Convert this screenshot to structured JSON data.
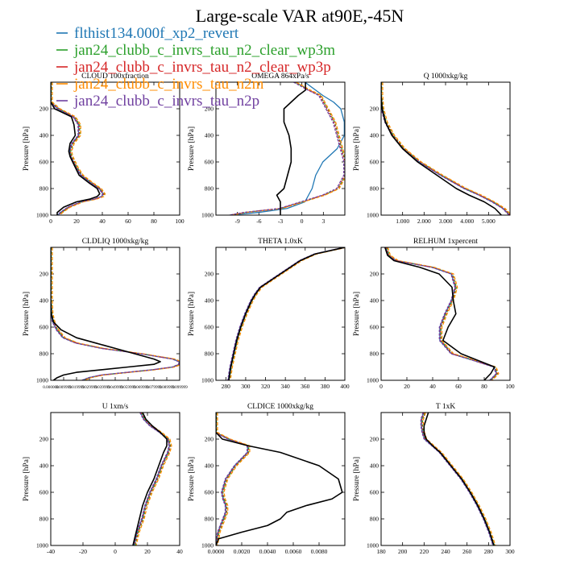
{
  "figure": {
    "title": "Large-scale VAR at90E,-45N"
  },
  "legend": [
    {
      "name": "flthist134.000f_xp2_revert",
      "color": "#1f77b4"
    },
    {
      "name": "jan24_clubb_c_invrs_tau_n2_clear_wp3m",
      "color": "#2ca02c"
    },
    {
      "name": "jan24_clubb_c_invrs_tau_n2_clear_wp3p",
      "color": "#d62728"
    },
    {
      "name": "jan24_clubb_c_invrs_tau_n2m",
      "color": "#ff8c00"
    },
    {
      "name": "jan24_clubb_c_invrs_tau_n2p",
      "color": "#7040a0"
    }
  ],
  "colors": {
    "control": "#000000"
  },
  "chart_data": [
    {
      "type": "line",
      "title": "CLOUD 100xfraction",
      "xlabel": "",
      "ylabel": "Pressure [hPa]",
      "xlim": [
        0,
        100
      ],
      "ylim": [
        1000,
        0
      ],
      "xticks": [
        0,
        20,
        40,
        60,
        80,
        100
      ],
      "xtick_labels": [
        "0",
        "20",
        "40",
        "60",
        "80",
        "100"
      ],
      "yticks": [
        200,
        400,
        600,
        800,
        1000
      ],
      "ytick_labels": [
        "200",
        "400",
        "600",
        "800",
        "1000"
      ],
      "p": [
        0,
        100,
        150,
        200,
        260,
        320,
        400,
        460,
        520,
        560,
        600,
        640,
        700,
        760,
        800,
        840,
        860,
        880,
        900,
        940,
        980,
        1000
      ],
      "control": [
        0,
        0,
        0,
        3,
        16,
        18,
        19,
        15,
        14,
        15,
        17,
        19,
        22,
        30,
        36,
        38,
        36,
        30,
        20,
        10,
        5,
        5
      ],
      "member": [
        0,
        0,
        0,
        6,
        18,
        22,
        22,
        17,
        15,
        16,
        18,
        20,
        24,
        32,
        38,
        41,
        40,
        34,
        24,
        14,
        8,
        6
      ]
    },
    {
      "type": "line",
      "title": "OMEGA 864xPa/s",
      "xlabel": "",
      "ylabel": "Pressure [hPa]",
      "xlim": [
        -12,
        6
      ],
      "ylim": [
        1000,
        0
      ],
      "xticks": [
        -9,
        -6,
        -3,
        0,
        3
      ],
      "xtick_labels": [
        "-9",
        "-6",
        "-3",
        "0",
        "3"
      ],
      "yticks": [
        200,
        400,
        600,
        800,
        1000
      ],
      "ytick_labels": [
        "200",
        "400",
        "600",
        "800",
        "1000"
      ],
      "p": [
        0,
        60,
        100,
        150,
        200,
        300,
        400,
        500,
        600,
        700,
        800,
        850,
        900,
        950,
        980,
        1000
      ],
      "control": [
        0.5,
        0.5,
        -0.5,
        -1.5,
        -2.5,
        -2.5,
        -1.8,
        -1.5,
        -1.5,
        -2.0,
        -2.5,
        -3.5,
        -3.0,
        -3.0,
        -3.0,
        -3.0
      ],
      "ctrl_model": [
        0.5,
        2.0,
        3.0,
        4.5,
        5.5,
        6.0,
        6.0,
        5.0,
        3.0,
        2.0,
        1.5,
        1.0,
        0.5,
        -2.0,
        -6.0,
        -10.0
      ],
      "member": [
        -1.0,
        1.0,
        2.5,
        3.0,
        3.5,
        4.5,
        5.0,
        5.5,
        6.0,
        6.0,
        5.0,
        3.0,
        0.0,
        -3.0,
        -8.0,
        -10.0
      ]
    },
    {
      "type": "line",
      "title": "Q 1000xkg/kg",
      "xlabel": "",
      "ylabel": "Pressure [hPa]",
      "xlim": [
        0,
        6
      ],
      "ylim": [
        1000,
        0
      ],
      "xticks": [
        1,
        2,
        3,
        4,
        5
      ],
      "xtick_labels": [
        "1.000",
        "2.000",
        "3.000",
        "4.000",
        "5.000"
      ],
      "yticks": [
        200,
        400,
        600,
        800,
        1000
      ],
      "ytick_labels": [
        "200",
        "400",
        "600",
        "800",
        "1000"
      ],
      "p": [
        0,
        100,
        200,
        300,
        400,
        500,
        600,
        700,
        800,
        850,
        900,
        950,
        1000
      ],
      "control": [
        0,
        0,
        0.05,
        0.2,
        0.5,
        1.0,
        1.7,
        2.6,
        3.5,
        4.1,
        4.8,
        5.3,
        5.6
      ],
      "member": [
        0,
        0,
        0.05,
        0.22,
        0.55,
        1.05,
        1.8,
        2.8,
        3.9,
        4.6,
        5.2,
        5.7,
        6.0
      ]
    },
    {
      "type": "line",
      "title": "CLDLIQ 1000xkg/kg",
      "xlabel": "",
      "ylabel": "Pressure [hPa]",
      "xlim": [
        0,
        0.1
      ],
      "ylim": [
        1000,
        0
      ],
      "xticks": [
        0,
        0.01,
        0.02,
        0.03,
        0.04,
        0.05,
        0.06,
        0.07,
        0.08,
        0.09,
        0.1
      ],
      "xtick_labels": [
        "0.000000",
        "0.009999",
        "0.019999",
        "0.029999",
        "0.039999",
        "0.049999",
        "0.059999",
        "0.069999",
        "0.079999",
        "0.089999",
        "0.099999"
      ],
      "yticks": [
        200,
        400,
        600,
        800,
        1000
      ],
      "ytick_labels": [
        "200",
        "400",
        "600",
        "800",
        "1000"
      ],
      "p": [
        0,
        200,
        400,
        500,
        560,
        620,
        680,
        720,
        760,
        800,
        840,
        860,
        880,
        900,
        920,
        940,
        960,
        980,
        1000
      ],
      "control": [
        0,
        0,
        0,
        0.0005,
        0.002,
        0.008,
        0.02,
        0.035,
        0.05,
        0.065,
        0.08,
        0.085,
        0.08,
        0.06,
        0.04,
        0.02,
        0.01,
        0.005,
        0.002
      ],
      "member": [
        0,
        0,
        0,
        0.0005,
        0.002,
        0.005,
        0.01,
        0.02,
        0.04,
        0.07,
        0.095,
        0.1,
        0.1,
        0.095,
        0.08,
        0.06,
        0.04,
        0.03,
        0.025
      ]
    },
    {
      "type": "line",
      "title": "THETA 1.0xK",
      "xlabel": "",
      "ylabel": "Pressure [hPa]",
      "xlim": [
        270,
        400
      ],
      "ylim": [
        1000,
        0
      ],
      "xticks": [
        280,
        300,
        320,
        340,
        360,
        380,
        400
      ],
      "xtick_labels": [
        "280",
        "300",
        "320",
        "340",
        "360",
        "380",
        "400"
      ],
      "yticks": [
        200,
        400,
        600,
        800,
        1000
      ],
      "ytick_labels": [
        "200",
        "400",
        "600",
        "800",
        "1000"
      ],
      "p": [
        0,
        50,
        100,
        150,
        200,
        250,
        300,
        350,
        400,
        500,
        600,
        700,
        800,
        900,
        1000
      ],
      "control": [
        400,
        370,
        355,
        345,
        335,
        325,
        315,
        310,
        306,
        300,
        295,
        291,
        288,
        285,
        283
      ],
      "member": [
        400,
        370,
        355,
        345,
        335,
        325,
        315,
        310,
        306,
        300,
        295,
        291,
        288,
        285,
        283
      ]
    },
    {
      "type": "line",
      "title": "RELHUM 1xpercent",
      "xlabel": "",
      "ylabel": "Pressure [hPa]",
      "xlim": [
        0,
        100
      ],
      "ylim": [
        1000,
        0
      ],
      "xticks": [
        0,
        20,
        40,
        60,
        80,
        100
      ],
      "xtick_labels": [
        "0",
        "20",
        "40",
        "60",
        "80",
        "100"
      ],
      "yticks": [
        200,
        400,
        600,
        800,
        1000
      ],
      "ytick_labels": [
        "200",
        "400",
        "600",
        "800",
        "1000"
      ],
      "p": [
        0,
        60,
        100,
        150,
        200,
        300,
        400,
        500,
        600,
        700,
        800,
        850,
        900,
        950,
        1000
      ],
      "control": [
        3,
        5,
        10,
        30,
        45,
        55,
        56,
        58,
        52,
        48,
        62,
        75,
        88,
        85,
        80
      ],
      "member": [
        4,
        6,
        12,
        40,
        55,
        58,
        55,
        50,
        46,
        46,
        55,
        72,
        88,
        90,
        85
      ]
    },
    {
      "type": "line",
      "title": "U 1xm/s",
      "xlabel": "",
      "ylabel": "Pressure [hPa]",
      "xlim": [
        -40,
        40
      ],
      "ylim": [
        1000,
        0
      ],
      "xticks": [
        -40,
        -20,
        0,
        20,
        40
      ],
      "xtick_labels": [
        "-40",
        "-20",
        "0",
        "20",
        "40"
      ],
      "yticks": [
        200,
        400,
        600,
        800,
        1000
      ],
      "ytick_labels": [
        "200",
        "400",
        "600",
        "800",
        "1000"
      ],
      "p": [
        0,
        50,
        100,
        150,
        200,
        250,
        300,
        400,
        500,
        600,
        700,
        800,
        900,
        1000
      ],
      "control": [
        17,
        19,
        23,
        28,
        32,
        32,
        30,
        27,
        24,
        20,
        17,
        15,
        13,
        11
      ],
      "member": [
        16,
        18,
        22,
        28,
        33,
        34,
        33,
        29,
        26,
        22,
        19,
        17,
        14,
        12
      ]
    },
    {
      "type": "line",
      "title": "CLDICE 1000xkg/kg",
      "xlabel": "",
      "ylabel": "Pressure [hPa]",
      "xlim": [
        0,
        0.01
      ],
      "ylim": [
        1000,
        0
      ],
      "xticks": [
        0,
        0.002,
        0.004,
        0.006,
        0.008
      ],
      "xtick_labels": [
        "0.0000",
        "0.0020",
        "0.0040",
        "0.0060",
        "0.0080"
      ],
      "yticks": [
        200,
        400,
        600,
        800,
        1000
      ],
      "ytick_labels": [
        "200",
        "400",
        "600",
        "800",
        "1000"
      ],
      "p": [
        0,
        150,
        200,
        250,
        300,
        400,
        500,
        600,
        650,
        700,
        750,
        800,
        850,
        900,
        950,
        1000
      ],
      "control": [
        0,
        0,
        0.0005,
        0.0025,
        0.005,
        0.008,
        0.0095,
        0.0098,
        0.009,
        0.007,
        0.0055,
        0.005,
        0.004,
        0.002,
        0.0002,
        0
      ],
      "member": [
        0,
        0,
        0.001,
        0.0025,
        0.0025,
        0.0015,
        0.0008,
        0.0005,
        0.0006,
        0.0008,
        0.0008,
        0.0006,
        0.0004,
        0.0002,
        0.0001,
        0
      ]
    },
    {
      "type": "line",
      "title": "T 1xK",
      "xlabel": "",
      "ylabel": "Pressure [hPa]",
      "xlim": [
        180,
        300
      ],
      "ylim": [
        1000,
        0
      ],
      "xticks": [
        180,
        200,
        220,
        240,
        260,
        280,
        300
      ],
      "xtick_labels": [
        "180",
        "200",
        "220",
        "240",
        "260",
        "280",
        "300"
      ],
      "yticks": [
        200,
        400,
        600,
        800,
        1000
      ],
      "ytick_labels": [
        "200",
        "400",
        "600",
        "800",
        "1000"
      ],
      "p": [
        0,
        50,
        100,
        150,
        200,
        250,
        300,
        400,
        500,
        600,
        700,
        800,
        900,
        1000
      ],
      "control": [
        224,
        222,
        220,
        220,
        222,
        228,
        235,
        245,
        255,
        263,
        270,
        276,
        281,
        285
      ],
      "member": [
        220,
        218,
        218,
        219,
        221,
        228,
        235,
        245,
        255,
        263,
        270,
        276,
        281,
        285
      ]
    }
  ]
}
